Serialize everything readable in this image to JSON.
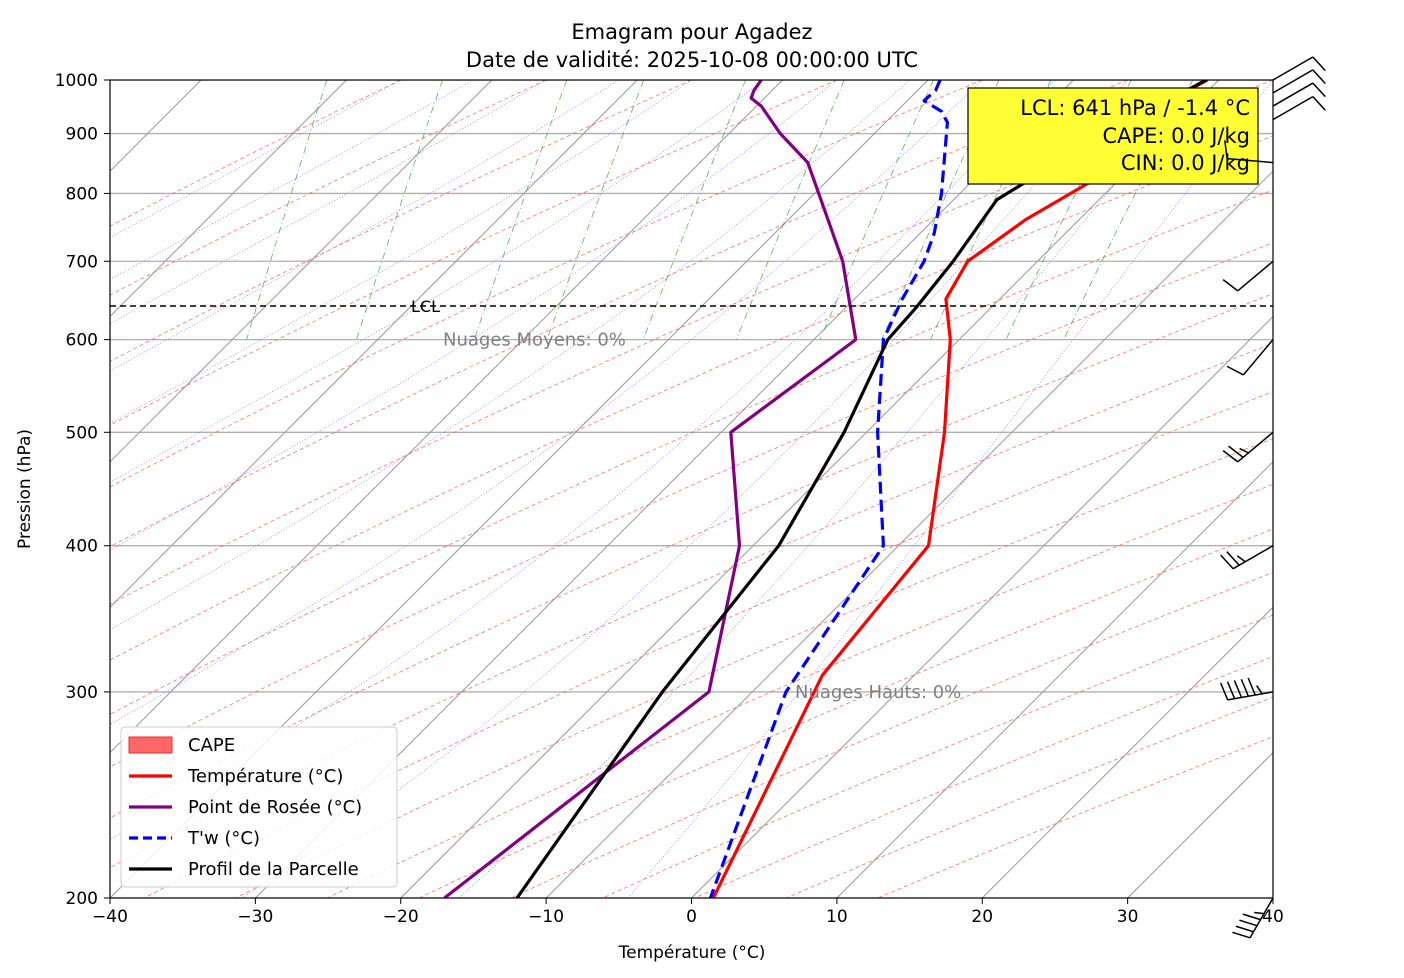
{
  "chart_data": {
    "type": "line",
    "subtype": "emagram",
    "title": "Emagram pour Agadez",
    "subtitle": "Date de validité: 2025-10-08 00:00:00 UTC",
    "xlabel": "Température (°C)",
    "ylabel": "Pression (hPa)",
    "xlim": [
      -40,
      40
    ],
    "ylim": [
      1000,
      200
    ],
    "y_scale": "log",
    "x_ticks": [
      "−40",
      "−30",
      "−20",
      "−10",
      "0",
      "10",
      "20",
      "30",
      "40"
    ],
    "y_ticks": [
      "200",
      "300",
      "400",
      "500",
      "600",
      "700",
      "800",
      "900",
      "1000"
    ],
    "grid": true,
    "legend_position": "lower-left",
    "info_box": {
      "lines": [
        "LCL: 641 hPa / -1.4 °C",
        "CAPE: 0.0 J/kg",
        "CIN: 0.0 J/kg"
      ],
      "background": "#ffff33"
    },
    "annotations": {
      "high_clouds": "Nuages Hauts: 0%",
      "mid_clouds": "Nuages Moyens: 0%",
      "lcl_label": "LCL",
      "lcl_pressure": 641
    },
    "series": [
      {
        "name": "CAPE",
        "color": "#ff6666",
        "style": "fill",
        "points": []
      },
      {
        "name": "Température (°C)",
        "color": "#ff0000",
        "style": "solid",
        "points": [
          [
            35.5,
            1000
          ],
          [
            34.5,
            985
          ],
          [
            32.2,
            965
          ],
          [
            35.3,
            935
          ],
          [
            34.0,
            910
          ],
          [
            32.0,
            880
          ],
          [
            29.0,
            840
          ],
          [
            23.0,
            760
          ],
          [
            19.0,
            700
          ],
          [
            17.5,
            650
          ],
          [
            17.8,
            600
          ],
          [
            17.4,
            500
          ],
          [
            16.3,
            400
          ],
          [
            9.0,
            310
          ],
          [
            1.5,
            200
          ]
        ]
      },
      {
        "name": "Point de Rosée (°C)",
        "color": "#800080",
        "style": "solid",
        "points": [
          [
            4.8,
            1000
          ],
          [
            4.3,
            980
          ],
          [
            4.1,
            965
          ],
          [
            4.8,
            950
          ],
          [
            6.1,
            900
          ],
          [
            8.0,
            850
          ],
          [
            10.4,
            700
          ],
          [
            11.3,
            600
          ],
          [
            2.7,
            500
          ],
          [
            3.3,
            400
          ],
          [
            1.2,
            300
          ],
          [
            -17.0,
            200
          ]
        ]
      },
      {
        "name": "T'w (°C)",
        "color": "#0000ff",
        "style": "dashed",
        "points": [
          [
            17.1,
            1000
          ],
          [
            16.8,
            980
          ],
          [
            16.0,
            960
          ],
          [
            17.2,
            940
          ],
          [
            17.6,
            920
          ],
          [
            17.2,
            800
          ],
          [
            16.7,
            740
          ],
          [
            16.0,
            700
          ],
          [
            14.5,
            650
          ],
          [
            13.2,
            600
          ],
          [
            12.8,
            500
          ],
          [
            13.2,
            400
          ],
          [
            6.5,
            300
          ],
          [
            1.3,
            200
          ]
        ]
      },
      {
        "name": "Profil de la Parcelle",
        "color": "#000000",
        "style": "solid",
        "points": [
          [
            35.4,
            1000
          ],
          [
            30.0,
            920
          ],
          [
            24.5,
            840
          ],
          [
            21.0,
            790
          ],
          [
            18.0,
            700
          ],
          [
            15.5,
            640
          ],
          [
            13.5,
            600
          ],
          [
            10.5,
            500
          ],
          [
            6.0,
            400
          ],
          [
            -2.0,
            300
          ],
          [
            -12.0,
            200
          ]
        ]
      }
    ],
    "wind_barbs": [
      {
        "pressure": 200,
        "direction_deg": 210,
        "speed_kt": 45
      },
      {
        "pressure": 300,
        "direction_deg": 260,
        "speed_kt": 55
      },
      {
        "pressure": 400,
        "direction_deg": 240,
        "speed_kt": 25
      },
      {
        "pressure": 500,
        "direction_deg": 230,
        "speed_kt": 25
      },
      {
        "pressure": 600,
        "direction_deg": 220,
        "speed_kt": 10
      },
      {
        "pressure": 700,
        "direction_deg": 230,
        "speed_kt": 10
      },
      {
        "pressure": 850,
        "direction_deg": 275,
        "speed_kt": 10
      },
      {
        "pressure": 925,
        "direction_deg": 60,
        "speed_kt": 10
      },
      {
        "pressure": 950,
        "direction_deg": 60,
        "speed_kt": 10
      },
      {
        "pressure": 975,
        "direction_deg": 60,
        "speed_kt": 10
      },
      {
        "pressure": 1000,
        "direction_deg": 60,
        "speed_kt": 10
      }
    ]
  }
}
